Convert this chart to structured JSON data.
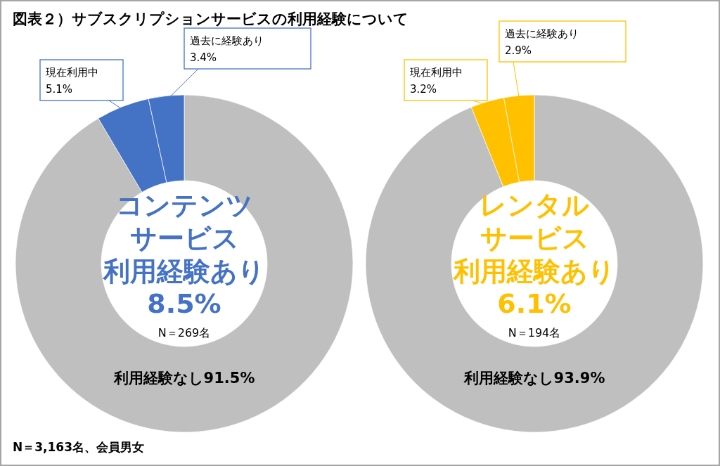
{
  "chart_data": [
    {
      "type": "donut",
      "title": "図表２）サブスクリプションサービスの利用経験について",
      "categories": [
        "利用経験なし",
        "現在利用中",
        "過去に経験あり"
      ],
      "values": [
        91.5,
        5.1,
        3.4
      ],
      "value_labels": [
        "91.5%",
        "5.1%",
        "3.4%"
      ],
      "colors": [
        "#bfbfbf",
        "#4472c4",
        "#4472c4"
      ],
      "annotations": [
        "コンテンツ",
        "サービス",
        "利用経験あり",
        "8.5%",
        "N＝269名",
        "N＝3,163名、会員男女"
      ]
    },
    {
      "type": "donut",
      "categories": [
        "利用経験なし",
        "現在利用中",
        "過去に経験あり"
      ],
      "values": [
        93.9,
        3.2,
        2.9
      ],
      "value_labels": [
        "93.9%",
        "3.2%",
        "2.9%"
      ],
      "colors": [
        "#bfbfbf",
        "#ffc000",
        "#ffc000"
      ],
      "annotations": [
        "レンタル",
        "サービス",
        "利用経験あり",
        "6.1%",
        "N＝194名"
      ]
    }
  ]
}
